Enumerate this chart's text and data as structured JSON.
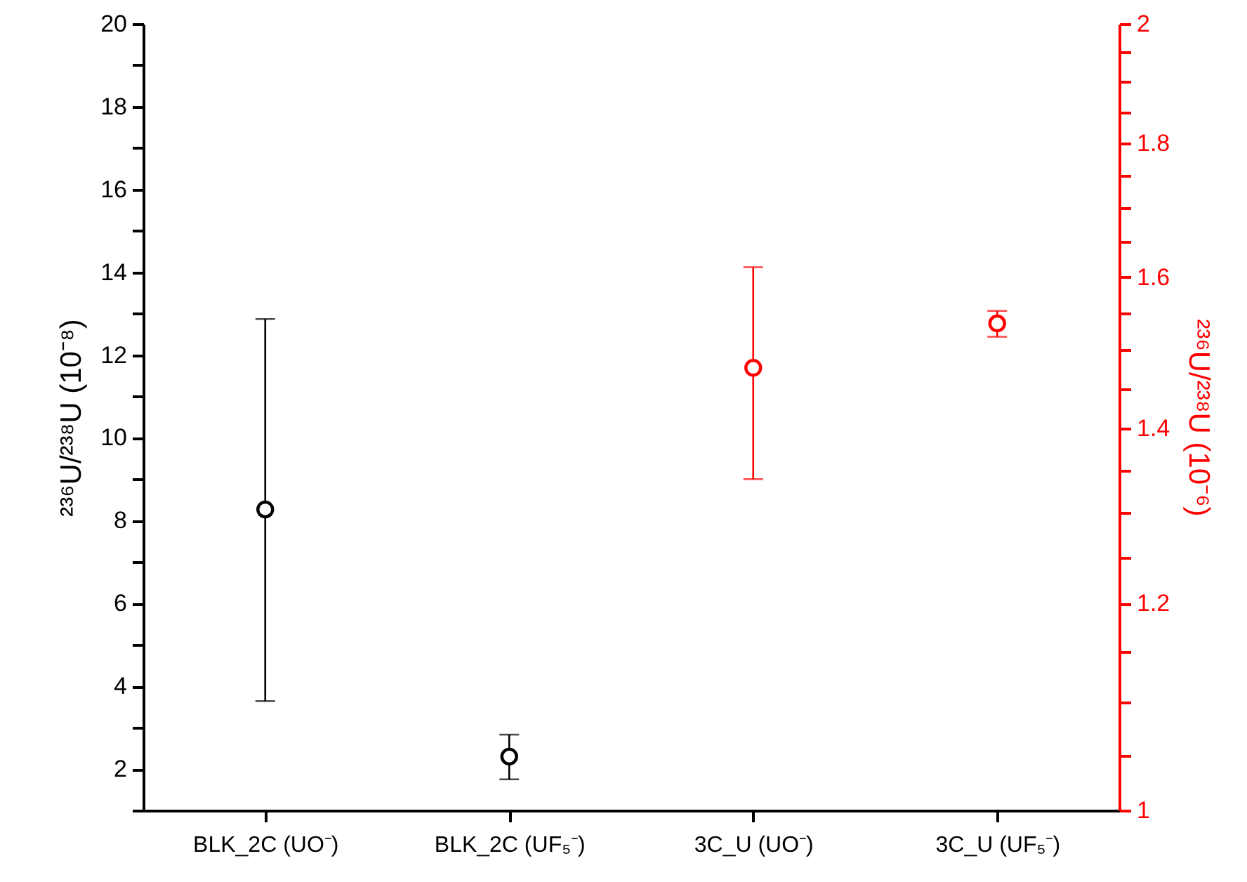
{
  "chart_data": {
    "type": "scatter",
    "ylabel": "²³⁶U/²³⁸U (10⁻⁸)",
    "y2label": "²³⁶U/²³⁸U (10⁻⁶)",
    "categories": [
      "BLK_2C (UO⁻)",
      "BLK_2C (UF₅⁻)",
      "3C_U (UO⁻)",
      "3C_U (UF₅⁻)"
    ],
    "series": [
      {
        "color": "#000000",
        "values": [
          8.27,
          2.3,
          null,
          null
        ],
        "errors": [
          [
            3.64,
            12.87
          ],
          [
            1.75,
            2.83
          ],
          null,
          null
        ]
      },
      {
        "color": "#ff0000",
        "axis": "y2",
        "values": [
          null,
          null,
          1.477,
          1.536
        ],
        "errors": [
          null,
          null,
          [
            1.339,
            1.614
          ],
          [
            1.518,
            1.553
          ]
        ]
      }
    ],
    "ylim": [
      1,
      20
    ],
    "yticks": [
      {
        "value": 1,
        "label": null
      },
      2,
      {
        "value": 3,
        "label": null
      },
      4,
      {
        "value": 5,
        "label": null
      },
      6,
      {
        "value": 7,
        "label": null
      },
      8,
      {
        "value": 9,
        "label": null
      },
      10,
      {
        "value": 11,
        "label": null
      },
      12,
      {
        "value": 13,
        "label": null
      },
      14,
      {
        "value": 15,
        "label": null
      },
      16,
      {
        "value": 17,
        "label": null
      },
      18,
      {
        "value": 19,
        "label": null
      },
      20
    ],
    "y2lim": [
      1,
      2
    ],
    "y2ticks": [
      1,
      {
        "value": 1.05,
        "label": null
      },
      {
        "value": 1.1,
        "label": null
      },
      {
        "value": 1.15,
        "label": null
      },
      1.2,
      {
        "value": 1.25,
        "label": null
      },
      {
        "value": 1.3,
        "label": null
      },
      {
        "value": 1.35,
        "label": null
      },
      1.4,
      {
        "value": 1.45,
        "label": null
      },
      {
        "value": 1.5,
        "label": null
      },
      {
        "value": 1.55,
        "label": null
      },
      1.6,
      {
        "value": 1.65,
        "label": null
      },
      {
        "value": 1.7,
        "label": null
      },
      {
        "value": 1.75,
        "label": null
      },
      1.8,
      {
        "value": 1.85,
        "label": null
      },
      {
        "value": 1.9,
        "label": null
      },
      {
        "value": 1.95,
        "label": null
      },
      2
    ],
    "log": "y2",
    "marker": "circle",
    "grid": false
  }
}
